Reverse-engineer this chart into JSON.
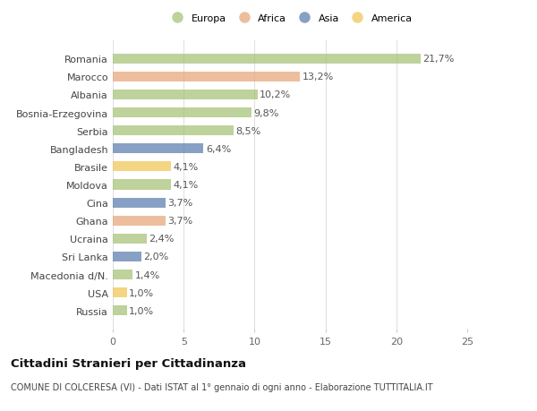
{
  "categories": [
    "Romania",
    "Marocco",
    "Albania",
    "Bosnia-Erzegovina",
    "Serbia",
    "Bangladesh",
    "Brasile",
    "Moldova",
    "Cina",
    "Ghana",
    "Ucraina",
    "Sri Lanka",
    "Macedonia d/N.",
    "USA",
    "Russia"
  ],
  "values": [
    21.7,
    13.2,
    10.2,
    9.8,
    8.5,
    6.4,
    4.1,
    4.1,
    3.7,
    3.7,
    2.4,
    2.0,
    1.4,
    1.0,
    1.0
  ],
  "labels": [
    "21,7%",
    "13,2%",
    "10,2%",
    "9,8%",
    "8,5%",
    "6,4%",
    "4,1%",
    "4,1%",
    "3,7%",
    "3,7%",
    "2,4%",
    "2,0%",
    "1,4%",
    "1,0%",
    "1,0%"
  ],
  "continents": [
    "Europa",
    "Africa",
    "Europa",
    "Europa",
    "Europa",
    "Asia",
    "America",
    "Europa",
    "Asia",
    "Africa",
    "Europa",
    "Asia",
    "Europa",
    "America",
    "Europa"
  ],
  "continent_colors": {
    "Europa": "#a8c47a",
    "Africa": "#e8a87c",
    "Asia": "#6080b0",
    "America": "#f0c85a"
  },
  "legend_order": [
    "Europa",
    "Africa",
    "Asia",
    "America"
  ],
  "xlim": [
    0,
    25
  ],
  "xticks": [
    0,
    5,
    10,
    15,
    20,
    25
  ],
  "background_color": "#ffffff",
  "bar_height": 0.55,
  "title": "Cittadini Stranieri per Cittadinanza",
  "subtitle": "COMUNE DI COLCERESA (VI) - Dati ISTAT al 1° gennaio di ogni anno - Elaborazione TUTTITALIA.IT",
  "grid_color": "#e0e0e0",
  "label_fontsize": 8,
  "ytick_fontsize": 8,
  "xtick_fontsize": 8,
  "title_fontsize": 9.5,
  "subtitle_fontsize": 7,
  "bar_alpha": 0.75
}
